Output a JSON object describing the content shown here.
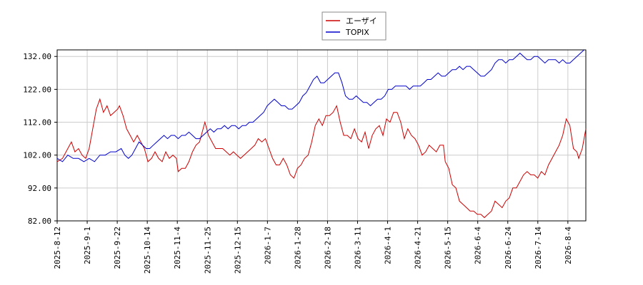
{
  "chart_data": {
    "type": "line",
    "title": "",
    "xlabel": "",
    "ylabel": "",
    "ylim": [
      82,
      134
    ],
    "yticks": [
      "82.00",
      "92.00",
      "102.00",
      "112.00",
      "122.00",
      "132.00"
    ],
    "xticks": [
      "2025-8-12",
      "2025-9-1",
      "2025-9-22",
      "2025-10-14",
      "2025-11-4",
      "2025-11-25",
      "2025-12-15",
      "2026-1-7",
      "2026-1-28",
      "2026-2-18",
      "2026-3-11",
      "2026-4-1",
      "2026-4-21",
      "2026-5-15",
      "2026-6-4",
      "2026-6-24",
      "2026-7-14",
      "2026-8-4"
    ],
    "grid": true,
    "legend_position": "top-center",
    "series": [
      {
        "name": "エーザイ",
        "color": "#cc0000",
        "values": [
          [
            0,
            100
          ],
          [
            3,
            101
          ],
          [
            6,
            104
          ],
          [
            8,
            106
          ],
          [
            10,
            103
          ],
          [
            12,
            104
          ],
          [
            14,
            102
          ],
          [
            16,
            101
          ],
          [
            18,
            104
          ],
          [
            20,
            110
          ],
          [
            22,
            116
          ],
          [
            24,
            119
          ],
          [
            26,
            115
          ],
          [
            28,
            117
          ],
          [
            30,
            114
          ],
          [
            32,
            115
          ],
          [
            34,
            116
          ],
          [
            35,
            117
          ],
          [
            37,
            114
          ],
          [
            39,
            110
          ],
          [
            41,
            108
          ],
          [
            43,
            106
          ],
          [
            45,
            108
          ],
          [
            47,
            106
          ],
          [
            49,
            104
          ],
          [
            51,
            100
          ],
          [
            53,
            101
          ],
          [
            55,
            103
          ],
          [
            57,
            101
          ],
          [
            59,
            100
          ],
          [
            61,
            103
          ],
          [
            63,
            101
          ],
          [
            65,
            102
          ],
          [
            67,
            101
          ],
          [
            68,
            97
          ],
          [
            70,
            98
          ],
          [
            72,
            98
          ],
          [
            74,
            100
          ],
          [
            76,
            103
          ],
          [
            78,
            105
          ],
          [
            80,
            106
          ],
          [
            82,
            110
          ],
          [
            83,
            112
          ],
          [
            85,
            108
          ],
          [
            87,
            106
          ],
          [
            89,
            104
          ],
          [
            91,
            104
          ],
          [
            93,
            104
          ],
          [
            95,
            103
          ],
          [
            97,
            102
          ],
          [
            99,
            103
          ],
          [
            101,
            102
          ],
          [
            103,
            101
          ],
          [
            105,
            102
          ],
          [
            107,
            103
          ],
          [
            109,
            104
          ],
          [
            111,
            105
          ],
          [
            113,
            107
          ],
          [
            115,
            106
          ],
          [
            117,
            107
          ],
          [
            119,
            104
          ],
          [
            121,
            101
          ],
          [
            123,
            99
          ],
          [
            125,
            99
          ],
          [
            127,
            101
          ],
          [
            129,
            99
          ],
          [
            131,
            96
          ],
          [
            133,
            95
          ],
          [
            135,
            98
          ],
          [
            137,
            99
          ],
          [
            139,
            101
          ],
          [
            141,
            102
          ],
          [
            143,
            106
          ],
          [
            145,
            111
          ],
          [
            147,
            113
          ],
          [
            149,
            111
          ],
          [
            151,
            114
          ],
          [
            153,
            114
          ],
          [
            155,
            115
          ],
          [
            157,
            117
          ],
          [
            159,
            112
          ],
          [
            161,
            108
          ],
          [
            163,
            108
          ],
          [
            165,
            107
          ],
          [
            167,
            110
          ],
          [
            169,
            107
          ],
          [
            171,
            106
          ],
          [
            173,
            109
          ],
          [
            175,
            104
          ],
          [
            177,
            108
          ],
          [
            179,
            110
          ],
          [
            181,
            111
          ],
          [
            183,
            108
          ],
          [
            185,
            113
          ],
          [
            187,
            112
          ],
          [
            189,
            115
          ],
          [
            191,
            115
          ],
          [
            193,
            112
          ],
          [
            195,
            107
          ],
          [
            197,
            110
          ],
          [
            199,
            108
          ],
          [
            201,
            107
          ],
          [
            203,
            105
          ],
          [
            205,
            102
          ],
          [
            207,
            103
          ],
          [
            209,
            105
          ],
          [
            211,
            104
          ],
          [
            213,
            103
          ],
          [
            215,
            105
          ],
          [
            217,
            105
          ],
          [
            218,
            100
          ],
          [
            220,
            98
          ],
          [
            222,
            93
          ],
          [
            224,
            92
          ],
          [
            226,
            88
          ],
          [
            228,
            87
          ],
          [
            230,
            86
          ],
          [
            232,
            85
          ],
          [
            234,
            85
          ],
          [
            236,
            84
          ],
          [
            238,
            84
          ],
          [
            240,
            83
          ],
          [
            242,
            84
          ],
          [
            244,
            85
          ],
          [
            246,
            88
          ],
          [
            248,
            87
          ],
          [
            250,
            86
          ],
          [
            252,
            88
          ],
          [
            254,
            89
          ],
          [
            256,
            92
          ],
          [
            258,
            92
          ],
          [
            260,
            94
          ],
          [
            262,
            96
          ],
          [
            264,
            97
          ],
          [
            266,
            96
          ],
          [
            268,
            96
          ],
          [
            270,
            95
          ],
          [
            272,
            97
          ],
          [
            274,
            96
          ],
          [
            276,
            99
          ],
          [
            278,
            101
          ],
          [
            280,
            103
          ],
          [
            282,
            105
          ],
          [
            284,
            108
          ],
          [
            286,
            113
          ],
          [
            288,
            111
          ],
          [
            290,
            104
          ],
          [
            292,
            103
          ],
          [
            293,
            101
          ],
          [
            295,
            104
          ],
          [
            297,
            110
          ]
        ]
      },
      {
        "name": "TOPIX",
        "color": "#0000cc",
        "values": [
          [
            0,
            101
          ],
          [
            3,
            100
          ],
          [
            6,
            102
          ],
          [
            9,
            101
          ],
          [
            12,
            101
          ],
          [
            15,
            100
          ],
          [
            18,
            101
          ],
          [
            21,
            100
          ],
          [
            24,
            102
          ],
          [
            27,
            102
          ],
          [
            30,
            103
          ],
          [
            33,
            103
          ],
          [
            36,
            104
          ],
          [
            38,
            102
          ],
          [
            40,
            101
          ],
          [
            42,
            102
          ],
          [
            44,
            104
          ],
          [
            46,
            106
          ],
          [
            48,
            105
          ],
          [
            50,
            104
          ],
          [
            52,
            104
          ],
          [
            54,
            105
          ],
          [
            56,
            106
          ],
          [
            58,
            107
          ],
          [
            60,
            108
          ],
          [
            62,
            107
          ],
          [
            64,
            108
          ],
          [
            66,
            108
          ],
          [
            68,
            107
          ],
          [
            70,
            108
          ],
          [
            72,
            108
          ],
          [
            74,
            109
          ],
          [
            76,
            108
          ],
          [
            78,
            107
          ],
          [
            80,
            107
          ],
          [
            82,
            108
          ],
          [
            84,
            109
          ],
          [
            86,
            110
          ],
          [
            88,
            109
          ],
          [
            90,
            110
          ],
          [
            92,
            110
          ],
          [
            94,
            111
          ],
          [
            96,
            110
          ],
          [
            98,
            111
          ],
          [
            100,
            111
          ],
          [
            102,
            110
          ],
          [
            104,
            111
          ],
          [
            106,
            111
          ],
          [
            108,
            112
          ],
          [
            110,
            112
          ],
          [
            112,
            113
          ],
          [
            114,
            114
          ],
          [
            116,
            115
          ],
          [
            118,
            117
          ],
          [
            120,
            118
          ],
          [
            122,
            119
          ],
          [
            124,
            118
          ],
          [
            126,
            117
          ],
          [
            128,
            117
          ],
          [
            130,
            116
          ],
          [
            132,
            116
          ],
          [
            134,
            117
          ],
          [
            136,
            118
          ],
          [
            138,
            120
          ],
          [
            140,
            121
          ],
          [
            142,
            123
          ],
          [
            144,
            125
          ],
          [
            146,
            126
          ],
          [
            148,
            124
          ],
          [
            150,
            124
          ],
          [
            152,
            125
          ],
          [
            154,
            126
          ],
          [
            156,
            127
          ],
          [
            158,
            127
          ],
          [
            160,
            124
          ],
          [
            162,
            120
          ],
          [
            164,
            119
          ],
          [
            166,
            119
          ],
          [
            168,
            120
          ],
          [
            170,
            119
          ],
          [
            172,
            118
          ],
          [
            174,
            118
          ],
          [
            176,
            117
          ],
          [
            178,
            118
          ],
          [
            180,
            119
          ],
          [
            182,
            119
          ],
          [
            184,
            120
          ],
          [
            186,
            122
          ],
          [
            188,
            122
          ],
          [
            190,
            123
          ],
          [
            192,
            123
          ],
          [
            194,
            123
          ],
          [
            196,
            123
          ],
          [
            198,
            122
          ],
          [
            200,
            123
          ],
          [
            202,
            123
          ],
          [
            204,
            123
          ],
          [
            206,
            124
          ],
          [
            208,
            125
          ],
          [
            210,
            125
          ],
          [
            212,
            126
          ],
          [
            214,
            127
          ],
          [
            216,
            126
          ],
          [
            218,
            126
          ],
          [
            220,
            127
          ],
          [
            222,
            128
          ],
          [
            224,
            128
          ],
          [
            226,
            129
          ],
          [
            228,
            128
          ],
          [
            230,
            129
          ],
          [
            232,
            129
          ],
          [
            234,
            128
          ],
          [
            236,
            127
          ],
          [
            238,
            126
          ],
          [
            240,
            126
          ],
          [
            242,
            127
          ],
          [
            244,
            128
          ],
          [
            246,
            130
          ],
          [
            248,
            131
          ],
          [
            250,
            131
          ],
          [
            252,
            130
          ],
          [
            254,
            131
          ],
          [
            256,
            131
          ],
          [
            258,
            132
          ],
          [
            260,
            133
          ],
          [
            262,
            132
          ],
          [
            264,
            131
          ],
          [
            266,
            131
          ],
          [
            268,
            132
          ],
          [
            270,
            132
          ],
          [
            272,
            131
          ],
          [
            274,
            130
          ],
          [
            276,
            131
          ],
          [
            278,
            131
          ],
          [
            280,
            131
          ],
          [
            282,
            130
          ],
          [
            284,
            131
          ],
          [
            286,
            130
          ],
          [
            288,
            130
          ],
          [
            290,
            131
          ],
          [
            292,
            132
          ],
          [
            294,
            133
          ],
          [
            296,
            134
          ]
        ]
      }
    ]
  }
}
